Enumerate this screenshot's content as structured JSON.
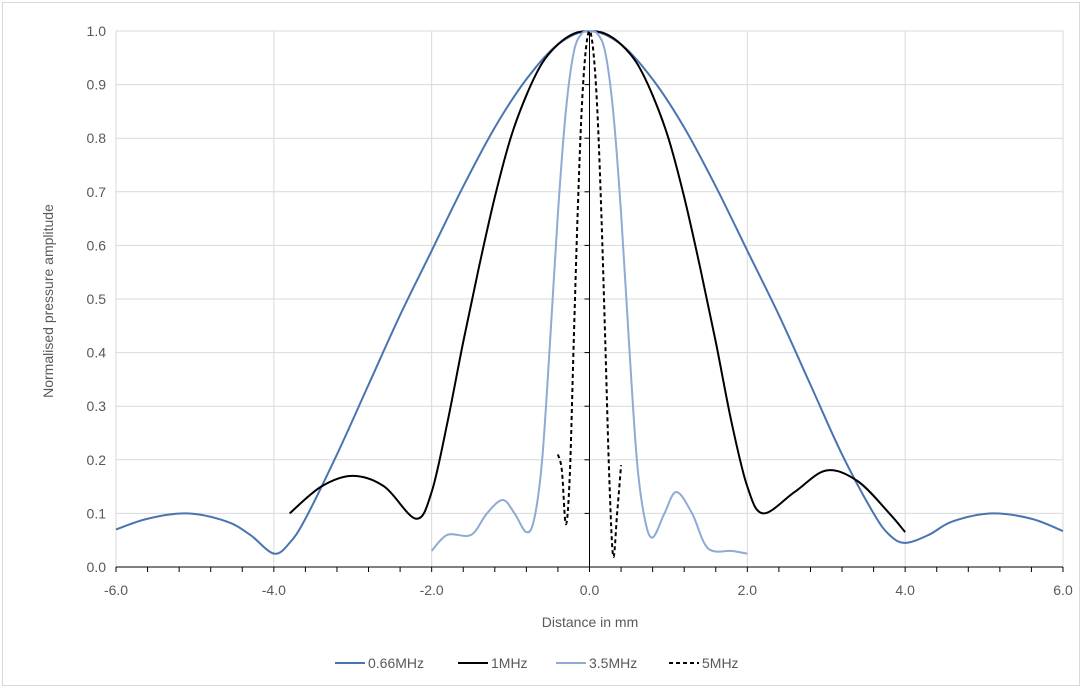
{
  "chart_data": {
    "type": "line",
    "title": "",
    "xlabel": "Distance in mm",
    "ylabel": "Normalised pressure amplitude",
    "xlim": [
      -6,
      6
    ],
    "ylim": [
      0,
      1
    ],
    "x_ticks": [
      "-6.0",
      "-4.0",
      "-2.0",
      "0.0",
      "2.0",
      "4.0",
      "6.0"
    ],
    "y_ticks": [
      "0.0",
      "0.1",
      "0.2",
      "0.3",
      "0.4",
      "0.5",
      "0.6",
      "0.7",
      "0.8",
      "0.9",
      "1.0"
    ],
    "grid": true,
    "legend_position": "bottom",
    "series": [
      {
        "name": "0.66MHz",
        "color": "#4a74b0",
        "dash": "solid",
        "width": 2,
        "x": [
          -6.0,
          -5.6,
          -5.1,
          -4.6,
          -4.3,
          -4.0,
          -3.8,
          -3.6,
          -3.2,
          -2.8,
          -2.4,
          -2.0,
          -1.6,
          -1.2,
          -0.8,
          -0.4,
          0.0,
          0.4,
          0.8,
          1.2,
          1.6,
          2.0,
          2.4,
          2.8,
          3.2,
          3.6,
          3.8,
          4.0,
          4.3,
          4.6,
          5.1,
          5.6,
          6.0
        ],
        "y": [
          0.07,
          0.09,
          0.1,
          0.085,
          0.06,
          0.025,
          0.045,
          0.09,
          0.21,
          0.34,
          0.47,
          0.59,
          0.71,
          0.82,
          0.91,
          0.975,
          1.0,
          0.975,
          0.91,
          0.82,
          0.71,
          0.59,
          0.47,
          0.34,
          0.21,
          0.1,
          0.06,
          0.045,
          0.06,
          0.085,
          0.1,
          0.09,
          0.067
        ]
      },
      {
        "name": "1MHz",
        "color": "#000000",
        "dash": "solid",
        "width": 2,
        "x": [
          -3.8,
          -3.4,
          -3.0,
          -2.6,
          -2.2,
          -2.0,
          -1.8,
          -1.6,
          -1.4,
          -1.2,
          -1.0,
          -0.8,
          -0.6,
          -0.4,
          -0.2,
          0.0,
          0.2,
          0.4,
          0.6,
          0.8,
          1.0,
          1.2,
          1.4,
          1.6,
          1.8,
          2.0,
          2.2,
          2.6,
          3.0,
          3.4,
          3.8,
          4.0
        ],
        "y": [
          0.1,
          0.15,
          0.17,
          0.15,
          0.09,
          0.14,
          0.27,
          0.42,
          0.56,
          0.69,
          0.8,
          0.88,
          0.94,
          0.975,
          0.995,
          1.0,
          0.995,
          0.975,
          0.94,
          0.88,
          0.8,
          0.69,
          0.56,
          0.42,
          0.27,
          0.15,
          0.1,
          0.14,
          0.18,
          0.16,
          0.1,
          0.065
        ]
      },
      {
        "name": "3.5MHz",
        "color": "#8faad4",
        "dash": "solid",
        "width": 2,
        "x": [
          -2.0,
          -1.8,
          -1.5,
          -1.3,
          -1.1,
          -0.95,
          -0.8,
          -0.7,
          -0.6,
          -0.5,
          -0.4,
          -0.3,
          -0.2,
          -0.1,
          0.0,
          0.1,
          0.2,
          0.3,
          0.4,
          0.5,
          0.6,
          0.7,
          0.8,
          0.95,
          1.1,
          1.3,
          1.5,
          1.8,
          2.0
        ],
        "y": [
          0.03,
          0.06,
          0.06,
          0.1,
          0.125,
          0.1,
          0.065,
          0.09,
          0.2,
          0.42,
          0.66,
          0.85,
          0.96,
          0.995,
          1.0,
          0.995,
          0.96,
          0.85,
          0.66,
          0.42,
          0.2,
          0.09,
          0.055,
          0.1,
          0.14,
          0.1,
          0.035,
          0.03,
          0.025
        ]
      },
      {
        "name": "5MHz",
        "color": "#000000",
        "dash": "dashed",
        "width": 2,
        "x": [
          -0.4,
          -0.35,
          -0.3,
          -0.25,
          -0.2,
          -0.15,
          -0.1,
          -0.05,
          0.0,
          0.05,
          0.1,
          0.15,
          0.2,
          0.25,
          0.3,
          0.35,
          0.4
        ],
        "y": [
          0.21,
          0.18,
          0.08,
          0.17,
          0.42,
          0.66,
          0.85,
          0.96,
          1.0,
          0.96,
          0.85,
          0.66,
          0.42,
          0.17,
          0.02,
          0.1,
          0.19
        ]
      }
    ]
  }
}
